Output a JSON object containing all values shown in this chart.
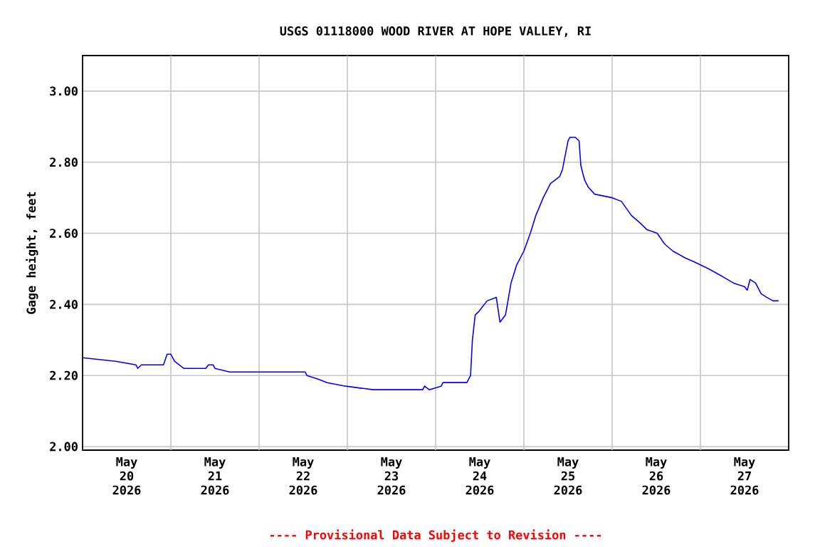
{
  "chart_data": {
    "type": "line",
    "title": "USGS 01118000 WOOD RIVER AT HOPE VALLEY, RI",
    "ylabel": "Gage height, feet",
    "annotations": [
      "---- Provisional Data Subject to Revision ----"
    ],
    "xlim": [
      "2026-05-20T00:00",
      "2026-05-28T00:00"
    ],
    "ylim": [
      1.99,
      3.1
    ],
    "xticks": [
      {
        "value": "2026-05-20T12:00",
        "label": "May 20 2026"
      },
      {
        "value": "2026-05-21T12:00",
        "label": "May 21 2026"
      },
      {
        "value": "2026-05-22T12:00",
        "label": "May 22 2026"
      },
      {
        "value": "2026-05-23T12:00",
        "label": "May 23 2026"
      },
      {
        "value": "2026-05-24T12:00",
        "label": "May 24 2026"
      },
      {
        "value": "2026-05-25T12:00",
        "label": "May 25 2026"
      },
      {
        "value": "2026-05-26T12:00",
        "label": "May 26 2026"
      },
      {
        "value": "2026-05-27T12:00",
        "label": "May 27 2026"
      },
      {
        "value": "2026-05-21T00:00",
        "label": null
      },
      {
        "value": "2026-05-22T00:00",
        "label": null
      },
      {
        "value": "2026-05-23T00:00",
        "label": null
      },
      {
        "value": "2026-05-24T00:00",
        "label": null
      },
      {
        "value": "2026-05-25T00:00",
        "label": null
      },
      {
        "value": "2026-05-26T00:00",
        "label": null
      },
      {
        "value": "2026-05-27T00:00",
        "label": null
      }
    ],
    "yticks": [
      {
        "value": 2.0,
        "label": "2.00"
      },
      {
        "value": 2.2,
        "label": "2.20"
      },
      {
        "value": 2.4,
        "label": "2.40"
      },
      {
        "value": 2.6,
        "label": "2.60"
      },
      {
        "value": 2.8,
        "label": "2.80"
      },
      {
        "value": 3.0,
        "label": "3.00"
      }
    ],
    "grid": true,
    "marker": "none",
    "line_style": "solid",
    "series": [
      {
        "color": "#0000ff",
        "x": [
          "2026-05-20T00:00",
          "2026-05-20T09:00",
          "2026-05-20T14:30",
          "2026-05-20T15:00",
          "2026-05-20T16:00",
          "2026-05-20T22:00",
          "2026-05-20T23:00",
          "2026-05-21T00:00",
          "2026-05-21T01:00",
          "2026-05-21T03:30",
          "2026-05-21T09:30",
          "2026-05-21T10:15",
          "2026-05-21T11:30",
          "2026-05-21T12:00",
          "2026-05-21T16:00",
          "2026-05-22T12:30",
          "2026-05-22T13:00",
          "2026-05-22T16:00",
          "2026-05-22T18:30",
          "2026-05-22T23:30",
          "2026-05-23T07:00",
          "2026-05-23T20:30",
          "2026-05-23T21:00",
          "2026-05-23T22:15",
          "2026-05-24T01:30",
          "2026-05-24T02:00",
          "2026-05-24T08:30",
          "2026-05-24T09:30",
          "2026-05-24T10:00",
          "2026-05-24T10:45",
          "2026-05-24T11:45",
          "2026-05-24T14:00",
          "2026-05-24T16:30",
          "2026-05-24T17:30",
          "2026-05-24T19:00",
          "2026-05-24T20:30",
          "2026-05-24T22:00",
          "2026-05-25T00:00",
          "2026-05-25T01:45",
          "2026-05-25T03:15",
          "2026-05-25T05:15",
          "2026-05-25T07:15",
          "2026-05-25T09:45",
          "2026-05-25T10:30",
          "2026-05-25T11:15",
          "2026-05-25T12:00",
          "2026-05-25T12:30",
          "2026-05-25T14:00",
          "2026-05-25T15:00",
          "2026-05-25T15:30",
          "2026-05-25T16:30",
          "2026-05-25T17:30",
          "2026-05-25T19:15",
          "2026-05-26T00:00",
          "2026-05-26T02:30",
          "2026-05-26T05:15",
          "2026-05-26T07:30",
          "2026-05-26T09:30",
          "2026-05-26T12:15",
          "2026-05-26T14:15",
          "2026-05-26T16:30",
          "2026-05-26T20:00",
          "2026-05-26T22:15",
          "2026-05-27T02:15",
          "2026-05-27T05:45",
          "2026-05-27T09:00",
          "2026-05-27T12:00",
          "2026-05-27T12:45",
          "2026-05-27T13:30",
          "2026-05-27T15:00",
          "2026-05-27T16:30",
          "2026-05-27T18:00",
          "2026-05-27T19:45",
          "2026-05-27T21:15"
        ],
        "values": [
          2.25,
          2.24,
          2.23,
          2.22,
          2.23,
          2.23,
          2.26,
          2.26,
          2.24,
          2.22,
          2.22,
          2.23,
          2.23,
          2.22,
          2.21,
          2.21,
          2.2,
          2.19,
          2.18,
          2.17,
          2.16,
          2.16,
          2.17,
          2.16,
          2.17,
          2.18,
          2.18,
          2.2,
          2.3,
          2.37,
          2.38,
          2.41,
          2.42,
          2.35,
          2.37,
          2.46,
          2.51,
          2.55,
          2.6,
          2.65,
          2.7,
          2.74,
          2.76,
          2.78,
          2.82,
          2.86,
          2.87,
          2.87,
          2.86,
          2.79,
          2.75,
          2.73,
          2.71,
          2.7,
          2.69,
          2.65,
          2.63,
          2.61,
          2.6,
          2.57,
          2.55,
          2.53,
          2.52,
          2.5,
          2.48,
          2.46,
          2.45,
          2.44,
          2.47,
          2.46,
          2.43,
          2.42,
          2.41,
          2.41
        ]
      }
    ]
  }
}
